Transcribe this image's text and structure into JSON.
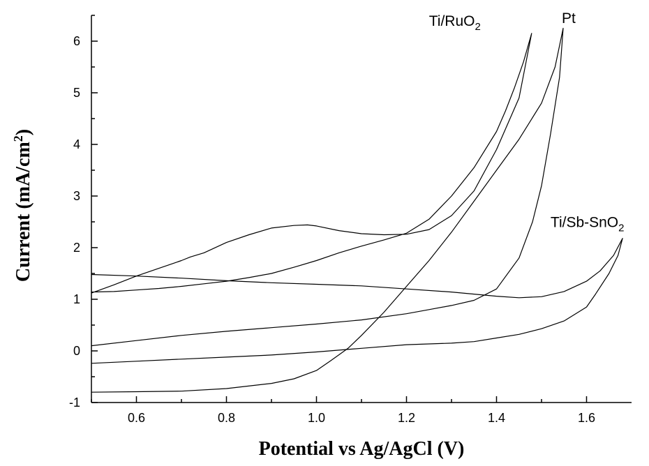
{
  "chart_data": {
    "type": "line",
    "xlabel": "Potential vs Ag/AgCl (V)",
    "ylabel_main": "Current (mA/cm",
    "ylabel_sup": "2",
    "ylabel_close": ")",
    "xlim": [
      0.5,
      1.7
    ],
    "ylim": [
      -1,
      6.5
    ],
    "xticks": [
      "0.6",
      "0.8",
      "1.0",
      "1.2",
      "1.4",
      "1.6"
    ],
    "xtick_values": [
      0.6,
      0.8,
      1.0,
      1.2,
      1.4,
      1.6
    ],
    "yticks": [
      "-1",
      "0",
      "1",
      "2",
      "3",
      "4",
      "5",
      "6"
    ],
    "ytick_values": [
      -1,
      0,
      1,
      2,
      3,
      4,
      5,
      6
    ],
    "grid": false,
    "legend": "none",
    "line_color": "#000000",
    "labels": [
      {
        "base": "Ti/RuO",
        "sub": "2",
        "anchor_x": 1.25,
        "anchor_y": 6.3
      },
      {
        "base": "Pt",
        "sub": "",
        "anchor_x": 1.545,
        "anchor_y": 6.35
      },
      {
        "base": "Ti/Sb-SnO",
        "sub": "2",
        "anchor_x": 1.52,
        "anchor_y": 2.4
      }
    ],
    "series": [
      {
        "label_index": 0,
        "x": [
          0.5,
          0.55,
          0.6,
          0.65,
          0.7,
          0.72,
          0.75,
          0.8,
          0.85,
          0.9,
          0.95,
          0.98,
          1.0,
          1.05,
          1.1,
          1.15,
          1.2,
          1.25,
          1.3,
          1.35,
          1.4,
          1.45,
          1.478,
          1.46,
          1.44,
          1.42,
          1.4,
          1.35,
          1.3,
          1.25,
          1.2,
          1.15,
          1.1,
          1.05,
          1.0,
          0.95,
          0.9,
          0.85,
          0.8,
          0.75,
          0.7,
          0.65,
          0.6,
          0.55,
          0.5
        ],
        "y": [
          1.12,
          1.28,
          1.45,
          1.6,
          1.75,
          1.82,
          1.9,
          2.1,
          2.25,
          2.38,
          2.43,
          2.44,
          2.42,
          2.33,
          2.27,
          2.25,
          2.26,
          2.35,
          2.62,
          3.1,
          3.9,
          4.9,
          6.15,
          5.6,
          5.1,
          4.65,
          4.25,
          3.55,
          3.0,
          2.55,
          2.28,
          2.15,
          2.03,
          1.9,
          1.75,
          1.62,
          1.5,
          1.42,
          1.35,
          1.3,
          1.25,
          1.21,
          1.18,
          1.15,
          1.14
        ]
      },
      {
        "label_index": 1,
        "x": [
          0.5,
          0.6,
          0.7,
          0.8,
          0.9,
          0.95,
          1.0,
          1.03,
          1.07,
          1.1,
          1.15,
          1.2,
          1.25,
          1.3,
          1.35,
          1.4,
          1.45,
          1.5,
          1.53,
          1.548,
          1.54,
          1.52,
          1.5,
          1.48,
          1.45,
          1.4,
          1.35,
          1.3,
          1.25,
          1.2,
          1.1,
          1.0,
          0.9,
          0.8,
          0.7,
          0.6,
          0.5
        ],
        "y": [
          -0.8,
          -0.79,
          -0.78,
          -0.73,
          -0.63,
          -0.54,
          -0.38,
          -0.2,
          0.05,
          0.3,
          0.75,
          1.25,
          1.75,
          2.3,
          2.9,
          3.5,
          4.1,
          4.8,
          5.5,
          6.25,
          5.3,
          4.2,
          3.2,
          2.5,
          1.8,
          1.2,
          0.98,
          0.88,
          0.8,
          0.72,
          0.6,
          0.52,
          0.45,
          0.38,
          0.3,
          0.2,
          0.1
        ]
      },
      {
        "label_index": 2,
        "x": [
          0.5,
          0.6,
          0.7,
          0.8,
          0.9,
          1.0,
          1.1,
          1.2,
          1.3,
          1.35,
          1.4,
          1.45,
          1.5,
          1.55,
          1.6,
          1.63,
          1.66,
          1.68,
          1.67,
          1.65,
          1.62,
          1.6,
          1.55,
          1.5,
          1.45,
          1.4,
          1.35,
          1.3,
          1.2,
          1.1,
          1.0,
          0.9,
          0.8,
          0.7,
          0.6,
          0.5
        ],
        "y": [
          1.48,
          1.45,
          1.41,
          1.36,
          1.32,
          1.29,
          1.26,
          1.2,
          1.14,
          1.1,
          1.06,
          1.03,
          1.05,
          1.15,
          1.35,
          1.55,
          1.85,
          2.18,
          1.85,
          1.5,
          1.1,
          0.85,
          0.58,
          0.43,
          0.32,
          0.25,
          0.18,
          0.15,
          0.12,
          0.05,
          -0.02,
          -0.08,
          -0.12,
          -0.16,
          -0.2,
          -0.24
        ]
      }
    ]
  }
}
